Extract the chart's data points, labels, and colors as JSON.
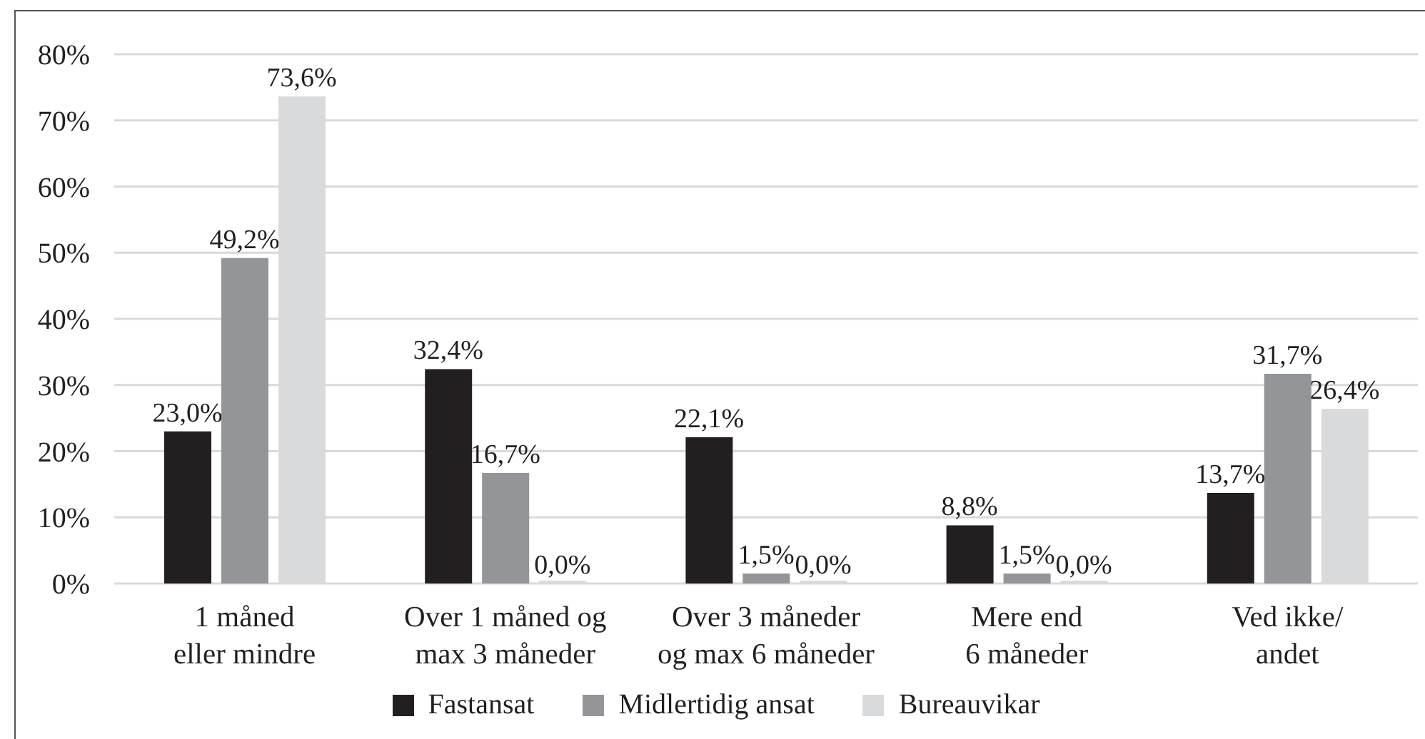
{
  "chart_data": {
    "type": "bar",
    "categories": [
      "1 måned\neller mindre",
      "Over 1 måned og\nmax 3 måneder",
      "Over 3 måneder\nog max 6 måneder",
      "Mere end\n6 måneder",
      "Ved ikke/\nandet"
    ],
    "series": [
      {
        "name": "Fastansat",
        "color": "#231f20",
        "values": [
          23.0,
          32.4,
          22.1,
          8.8,
          13.7
        ],
        "value_labels": [
          "23,0%",
          "32,4%",
          "22,1%",
          "8,8%",
          "13,7%"
        ]
      },
      {
        "name": "Midlertidig ansat",
        "color": "#939598",
        "values": [
          49.2,
          16.7,
          1.5,
          1.5,
          31.7
        ],
        "value_labels": [
          "49,2%",
          "16,7%",
          "1,5%",
          "1,5%",
          "31,7%"
        ]
      },
      {
        "name": "Bureauvikar",
        "color": "#d9dadb",
        "values": [
          73.6,
          0.0,
          0.0,
          0.0,
          26.4
        ],
        "value_labels": [
          "73,6%",
          "0,0%",
          "0,0%",
          "0,0%",
          "26,4%"
        ]
      }
    ],
    "ylim": [
      0,
      80
    ],
    "yticks": [
      {
        "value": 0,
        "label": "0%"
      },
      {
        "value": 10,
        "label": "10%"
      },
      {
        "value": 20,
        "label": "20%"
      },
      {
        "value": 30,
        "label": "30%"
      },
      {
        "value": 40,
        "label": "40%"
      },
      {
        "value": 50,
        "label": "50%"
      },
      {
        "value": 60,
        "label": "60%"
      },
      {
        "value": 70,
        "label": "70%"
      },
      {
        "value": 80,
        "label": "80%"
      }
    ],
    "grid": "y",
    "legend": "bottom"
  }
}
